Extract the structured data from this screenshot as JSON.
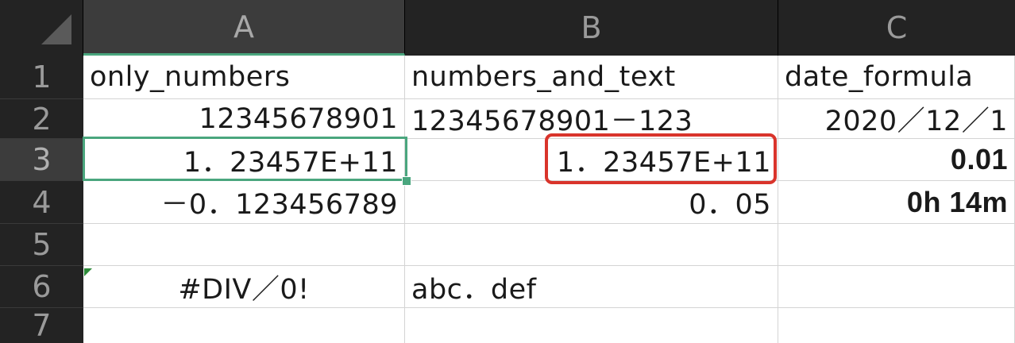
{
  "columns": [
    "A",
    "B",
    "C"
  ],
  "rows": [
    "1",
    "2",
    "3",
    "4",
    "5",
    "6",
    "7"
  ],
  "cells": {
    "A1": "only_numbers",
    "B1": "numbers_and_text",
    "C1": "date_formula",
    "A2": "12345678901",
    "B2": "12345678901－123",
    "C2": "2020／12／1",
    "A3": "1．23457E+11",
    "B3": "1．23457E+11",
    "C3": "0.01",
    "A4": "－0．123456789",
    "B4": "0．05",
    "C4": "0h 14m",
    "A6": "#DIV／0!",
    "B6": "abc．def"
  },
  "selected_cell": "A3",
  "highlighted_cell": "B3",
  "colors": {
    "header_bg": "#232323",
    "selection_green": "#4aa67e",
    "highlight_red": "#d9342b"
  }
}
